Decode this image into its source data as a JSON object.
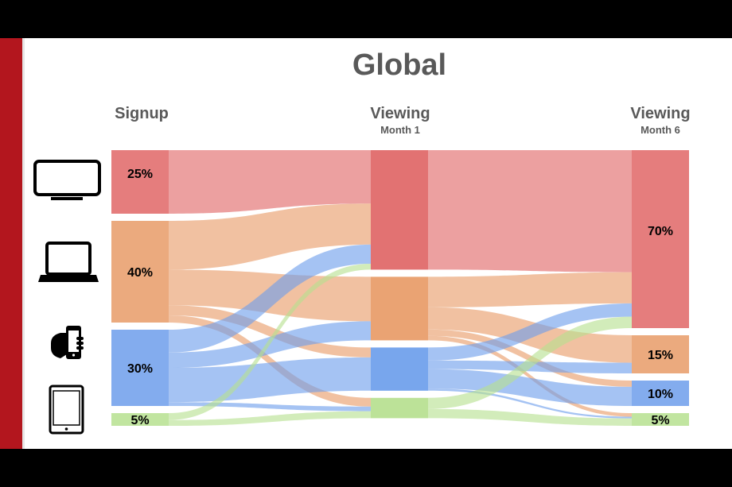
{
  "title": "Global",
  "columns": [
    {
      "label": "Signup",
      "sublabel": ""
    },
    {
      "label": "Viewing",
      "sublabel": "Month 1"
    },
    {
      "label": "Viewing",
      "sublabel": "Month 6"
    }
  ],
  "device_icons": [
    "tv-icon",
    "laptop-icon",
    "phone-icon",
    "tablet-icon"
  ],
  "colors": {
    "tv": "#e06666",
    "laptop": "#e89b67",
    "phone": "#6d9eeb",
    "tablet": "#b6e08f",
    "accent_bar": "#b3161e"
  },
  "chart_data": {
    "type": "sankey",
    "stages": [
      "Signup",
      "Viewing Month 1",
      "Viewing Month 6"
    ],
    "nodes": [
      {
        "stage": 0,
        "device": "tv",
        "value": 25,
        "label": "25%"
      },
      {
        "stage": 0,
        "device": "laptop",
        "value": 40,
        "label": "40%"
      },
      {
        "stage": 0,
        "device": "phone",
        "value": 30,
        "label": "30%"
      },
      {
        "stage": 0,
        "device": "tablet",
        "value": 5,
        "label": "5%"
      },
      {
        "stage": 1,
        "device": "tv",
        "value": 47,
        "label": ""
      },
      {
        "stage": 1,
        "device": "laptop",
        "value": 25,
        "label": ""
      },
      {
        "stage": 1,
        "device": "phone",
        "value": 17,
        "label": ""
      },
      {
        "stage": 1,
        "device": "tablet",
        "value": 8,
        "label": ""
      },
      {
        "stage": 2,
        "device": "tv",
        "value": 70,
        "label": "70%"
      },
      {
        "stage": 2,
        "device": "laptop",
        "value": 15,
        "label": "15%"
      },
      {
        "stage": 2,
        "device": "phone",
        "value": 10,
        "label": "10%"
      },
      {
        "stage": 2,
        "device": "tablet",
        "value": 5,
        "label": "5%"
      }
    ]
  }
}
